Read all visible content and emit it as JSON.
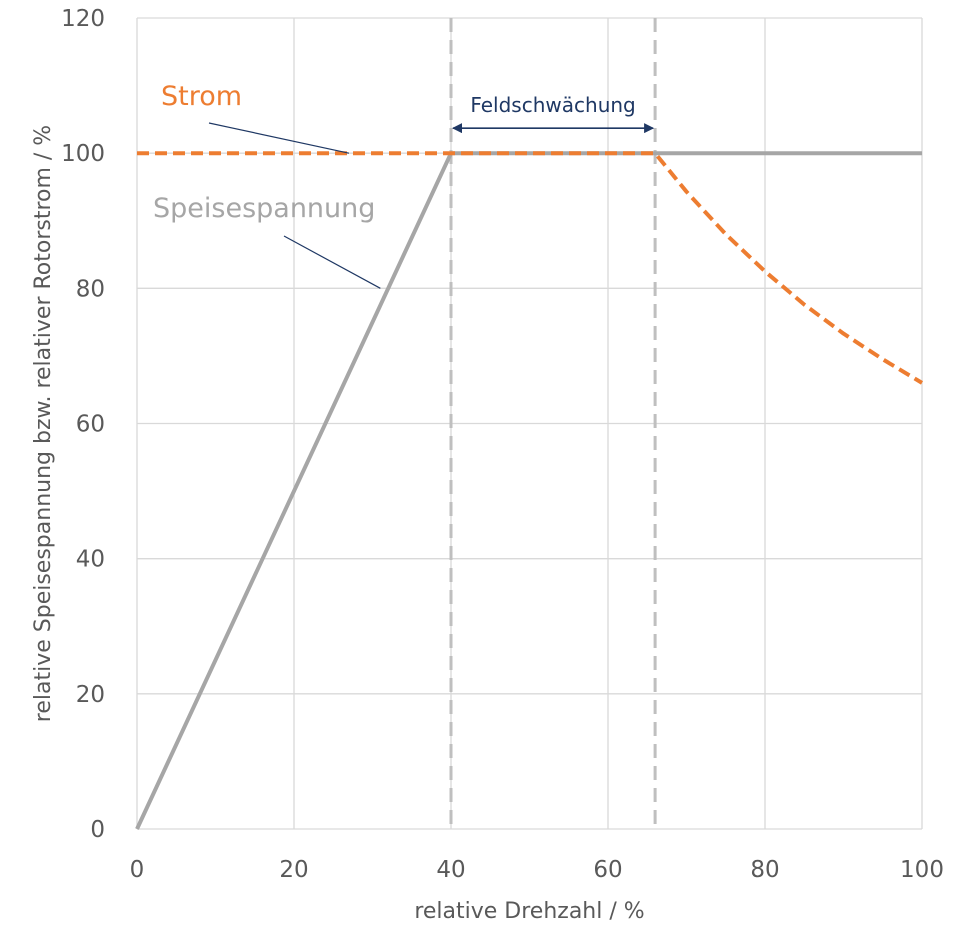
{
  "chart_data": {
    "type": "line",
    "xlabel": "relative Drehzahl / %",
    "ylabel": "relative Speisespannung bzw. relativer Rotorstrom / %",
    "xlim": [
      0,
      100
    ],
    "ylim": [
      0,
      120
    ],
    "x_ticks": [
      0,
      20,
      40,
      60,
      80,
      100
    ],
    "y_ticks": [
      0,
      20,
      40,
      60,
      80,
      100,
      120
    ],
    "grid": true,
    "series": [
      {
        "name": "Speisespannung",
        "color": "#a6a6a6",
        "style": "solid",
        "points": [
          [
            0,
            0
          ],
          [
            40,
            100
          ],
          [
            100,
            100
          ]
        ]
      },
      {
        "name": "Strom",
        "color": "#ed7d31",
        "style": "dashed",
        "points": [
          [
            0,
            100
          ],
          [
            66,
            100
          ],
          [
            70,
            94.3
          ],
          [
            75,
            88
          ],
          [
            80,
            82.5
          ],
          [
            85,
            77.6
          ],
          [
            90,
            73.3
          ],
          [
            95,
            69.5
          ],
          [
            100,
            66
          ]
        ]
      }
    ],
    "vertical_lines": [
      40,
      66
    ],
    "annotations": [
      {
        "text": "Strom",
        "color": "#ed7d31",
        "target": [
          27,
          100
        ]
      },
      {
        "text": "Speisespannung",
        "color": "#a6a6a6",
        "target": [
          31,
          80
        ]
      },
      {
        "text": "Feldschwächung",
        "color": "#1f3864",
        "range": [
          40,
          66
        ],
        "y": 103.7
      }
    ]
  }
}
